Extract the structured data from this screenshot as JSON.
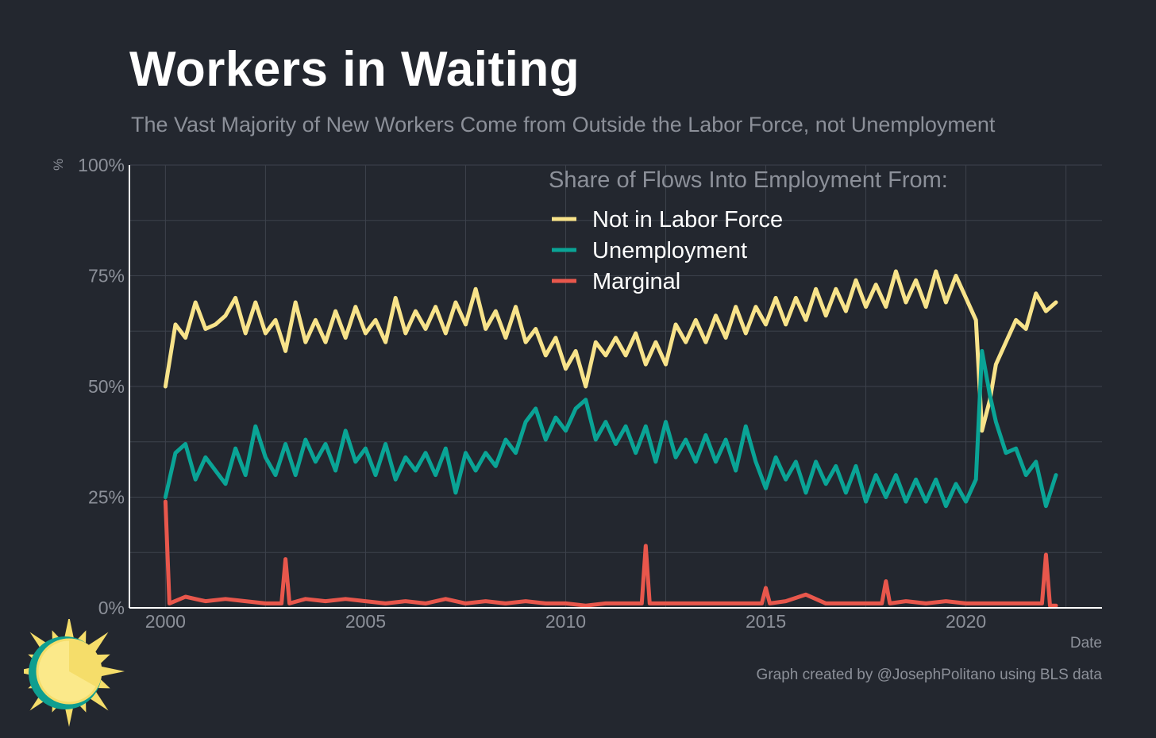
{
  "title": "Workers in Waiting",
  "subtitle": "The Vast Majority of New Workers Come from Outside the Labor Force, not Unemployment",
  "caption": "Graph created by @JosephPolitano using BLS data",
  "colors": {
    "background": "#23272f",
    "grid": "#3d424c",
    "axis": "#ffffff",
    "muted_text": "#8c9099",
    "not_in_labor_force": "#f8e38a",
    "unemployment": "#0aa496",
    "marginal": "#e8574c",
    "logo_sun": "#f5dd6a",
    "logo_ring": "#0f9e90"
  },
  "chart_data": {
    "type": "line",
    "title": "Workers in Waiting",
    "subtitle": "The Vast Majority of New Workers Come from Outside the Labor Force, not Unemployment",
    "xlabel": "Date",
    "ylabel": "%",
    "xlim": [
      1999.1,
      2023.4
    ],
    "ylim": [
      0,
      100
    ],
    "x_ticks": [
      2000,
      2005,
      2010,
      2015,
      2020
    ],
    "x_tick_labels": [
      "2000",
      "2005",
      "2010",
      "2015",
      "2020"
    ],
    "y_ticks": [
      0,
      25,
      50,
      75,
      100
    ],
    "y_tick_labels": [
      "0%",
      "25%",
      "50%",
      "75%",
      "100%"
    ],
    "grid": true,
    "legend_title": "Share of Flows Into Employment From:",
    "legend_position": "top-right",
    "series": [
      {
        "name": "Not in Labor Force",
        "color_key": "not_in_labor_force",
        "points": [
          [
            2000.0,
            50
          ],
          [
            2000.25,
            64
          ],
          [
            2000.5,
            61
          ],
          [
            2000.75,
            69
          ],
          [
            2001.0,
            63
          ],
          [
            2001.25,
            64
          ],
          [
            2001.5,
            66
          ],
          [
            2001.75,
            70
          ],
          [
            2002.0,
            62
          ],
          [
            2002.25,
            69
          ],
          [
            2002.5,
            62
          ],
          [
            2002.75,
            65
          ],
          [
            2003.0,
            58
          ],
          [
            2003.25,
            69
          ],
          [
            2003.5,
            60
          ],
          [
            2003.75,
            65
          ],
          [
            2004.0,
            60
          ],
          [
            2004.25,
            67
          ],
          [
            2004.5,
            61
          ],
          [
            2004.75,
            68
          ],
          [
            2005.0,
            62
          ],
          [
            2005.25,
            65
          ],
          [
            2005.5,
            60
          ],
          [
            2005.75,
            70
          ],
          [
            2006.0,
            62
          ],
          [
            2006.25,
            67
          ],
          [
            2006.5,
            63
          ],
          [
            2006.75,
            68
          ],
          [
            2007.0,
            62
          ],
          [
            2007.25,
            69
          ],
          [
            2007.5,
            64
          ],
          [
            2007.75,
            72
          ],
          [
            2008.0,
            63
          ],
          [
            2008.25,
            67
          ],
          [
            2008.5,
            61
          ],
          [
            2008.75,
            68
          ],
          [
            2009.0,
            60
          ],
          [
            2009.25,
            63
          ],
          [
            2009.5,
            57
          ],
          [
            2009.75,
            61
          ],
          [
            2010.0,
            54
          ],
          [
            2010.25,
            58
          ],
          [
            2010.5,
            50
          ],
          [
            2010.75,
            60
          ],
          [
            2011.0,
            57
          ],
          [
            2011.25,
            61
          ],
          [
            2011.5,
            57
          ],
          [
            2011.75,
            62
          ],
          [
            2012.0,
            55
          ],
          [
            2012.25,
            60
          ],
          [
            2012.5,
            55
          ],
          [
            2012.75,
            64
          ],
          [
            2013.0,
            60
          ],
          [
            2013.25,
            65
          ],
          [
            2013.5,
            60
          ],
          [
            2013.75,
            66
          ],
          [
            2014.0,
            61
          ],
          [
            2014.25,
            68
          ],
          [
            2014.5,
            62
          ],
          [
            2014.75,
            68
          ],
          [
            2015.0,
            64
          ],
          [
            2015.25,
            70
          ],
          [
            2015.5,
            64
          ],
          [
            2015.75,
            70
          ],
          [
            2016.0,
            65
          ],
          [
            2016.25,
            72
          ],
          [
            2016.5,
            66
          ],
          [
            2016.75,
            72
          ],
          [
            2017.0,
            67
          ],
          [
            2017.25,
            74
          ],
          [
            2017.5,
            68
          ],
          [
            2017.75,
            73
          ],
          [
            2018.0,
            68
          ],
          [
            2018.25,
            76
          ],
          [
            2018.5,
            69
          ],
          [
            2018.75,
            74
          ],
          [
            2019.0,
            68
          ],
          [
            2019.25,
            76
          ],
          [
            2019.5,
            69
          ],
          [
            2019.75,
            75
          ],
          [
            2020.0,
            70
          ],
          [
            2020.25,
            65
          ],
          [
            2020.4,
            40
          ],
          [
            2020.6,
            47
          ],
          [
            2020.75,
            55
          ],
          [
            2021.0,
            60
          ],
          [
            2021.25,
            65
          ],
          [
            2021.5,
            63
          ],
          [
            2021.75,
            71
          ],
          [
            2022.0,
            67
          ],
          [
            2022.25,
            69
          ]
        ]
      },
      {
        "name": "Unemployment",
        "color_key": "unemployment",
        "points": [
          [
            2000.0,
            25
          ],
          [
            2000.25,
            35
          ],
          [
            2000.5,
            37
          ],
          [
            2000.75,
            29
          ],
          [
            2001.0,
            34
          ],
          [
            2001.25,
            31
          ],
          [
            2001.5,
            28
          ],
          [
            2001.75,
            36
          ],
          [
            2002.0,
            30
          ],
          [
            2002.25,
            41
          ],
          [
            2002.5,
            34
          ],
          [
            2002.75,
            30
          ],
          [
            2003.0,
            37
          ],
          [
            2003.25,
            30
          ],
          [
            2003.5,
            38
          ],
          [
            2003.75,
            33
          ],
          [
            2004.0,
            37
          ],
          [
            2004.25,
            31
          ],
          [
            2004.5,
            40
          ],
          [
            2004.75,
            33
          ],
          [
            2005.0,
            36
          ],
          [
            2005.25,
            30
          ],
          [
            2005.5,
            37
          ],
          [
            2005.75,
            29
          ],
          [
            2006.0,
            34
          ],
          [
            2006.25,
            31
          ],
          [
            2006.5,
            35
          ],
          [
            2006.75,
            30
          ],
          [
            2007.0,
            36
          ],
          [
            2007.25,
            26
          ],
          [
            2007.5,
            35
          ],
          [
            2007.75,
            31
          ],
          [
            2008.0,
            35
          ],
          [
            2008.25,
            32
          ],
          [
            2008.5,
            38
          ],
          [
            2008.75,
            35
          ],
          [
            2009.0,
            42
          ],
          [
            2009.25,
            45
          ],
          [
            2009.5,
            38
          ],
          [
            2009.75,
            43
          ],
          [
            2010.0,
            40
          ],
          [
            2010.25,
            45
          ],
          [
            2010.5,
            47
          ],
          [
            2010.75,
            38
          ],
          [
            2011.0,
            42
          ],
          [
            2011.25,
            37
          ],
          [
            2011.5,
            41
          ],
          [
            2011.75,
            35
          ],
          [
            2012.0,
            41
          ],
          [
            2012.25,
            33
          ],
          [
            2012.5,
            42
          ],
          [
            2012.75,
            34
          ],
          [
            2013.0,
            38
          ],
          [
            2013.25,
            33
          ],
          [
            2013.5,
            39
          ],
          [
            2013.75,
            33
          ],
          [
            2014.0,
            38
          ],
          [
            2014.25,
            31
          ],
          [
            2014.5,
            41
          ],
          [
            2014.75,
            33
          ],
          [
            2015.0,
            27
          ],
          [
            2015.25,
            34
          ],
          [
            2015.5,
            29
          ],
          [
            2015.75,
            33
          ],
          [
            2016.0,
            26
          ],
          [
            2016.25,
            33
          ],
          [
            2016.5,
            28
          ],
          [
            2016.75,
            32
          ],
          [
            2017.0,
            26
          ],
          [
            2017.25,
            32
          ],
          [
            2017.5,
            24
          ],
          [
            2017.75,
            30
          ],
          [
            2018.0,
            25
          ],
          [
            2018.25,
            30
          ],
          [
            2018.5,
            24
          ],
          [
            2018.75,
            29
          ],
          [
            2019.0,
            24
          ],
          [
            2019.25,
            29
          ],
          [
            2019.5,
            23
          ],
          [
            2019.75,
            28
          ],
          [
            2020.0,
            24
          ],
          [
            2020.25,
            29
          ],
          [
            2020.4,
            58
          ],
          [
            2020.6,
            48
          ],
          [
            2020.75,
            42
          ],
          [
            2021.0,
            35
          ],
          [
            2021.25,
            36
          ],
          [
            2021.5,
            30
          ],
          [
            2021.75,
            33
          ],
          [
            2022.0,
            23
          ],
          [
            2022.25,
            30
          ]
        ]
      },
      {
        "name": "Marginal",
        "color_key": "marginal",
        "points": [
          [
            2000.0,
            24
          ],
          [
            2000.1,
            1
          ],
          [
            2000.5,
            2.5
          ],
          [
            2001.0,
            1.5
          ],
          [
            2001.5,
            2
          ],
          [
            2002.0,
            1.5
          ],
          [
            2002.5,
            1
          ],
          [
            2002.9,
            1
          ],
          [
            2003.0,
            11
          ],
          [
            2003.1,
            1
          ],
          [
            2003.5,
            2
          ],
          [
            2004.0,
            1.5
          ],
          [
            2004.5,
            2
          ],
          [
            2005.0,
            1.5
          ],
          [
            2005.5,
            1
          ],
          [
            2006.0,
            1.5
          ],
          [
            2006.5,
            1
          ],
          [
            2007.0,
            2
          ],
          [
            2007.5,
            1
          ],
          [
            2008.0,
            1.5
          ],
          [
            2008.5,
            1
          ],
          [
            2009.0,
            1.5
          ],
          [
            2009.5,
            1
          ],
          [
            2010.0,
            1
          ],
          [
            2010.5,
            0.5
          ],
          [
            2011.0,
            1
          ],
          [
            2011.5,
            1
          ],
          [
            2011.9,
            1
          ],
          [
            2012.0,
            14
          ],
          [
            2012.1,
            1
          ],
          [
            2012.5,
            1
          ],
          [
            2013.0,
            1
          ],
          [
            2013.5,
            1
          ],
          [
            2014.0,
            1
          ],
          [
            2014.5,
            1
          ],
          [
            2014.9,
            1
          ],
          [
            2015.0,
            4.5
          ],
          [
            2015.1,
            1
          ],
          [
            2015.5,
            1.5
          ],
          [
            2016.0,
            3
          ],
          [
            2016.5,
            1
          ],
          [
            2017.0,
            1
          ],
          [
            2017.5,
            1
          ],
          [
            2017.9,
            1
          ],
          [
            2018.0,
            6
          ],
          [
            2018.1,
            1
          ],
          [
            2018.5,
            1.5
          ],
          [
            2019.0,
            1
          ],
          [
            2019.5,
            1.5
          ],
          [
            2020.0,
            1
          ],
          [
            2020.5,
            1
          ],
          [
            2021.0,
            1
          ],
          [
            2021.5,
            1
          ],
          [
            2021.9,
            1
          ],
          [
            2022.0,
            12
          ],
          [
            2022.1,
            0.5
          ],
          [
            2022.25,
            0.5
          ]
        ]
      }
    ]
  },
  "logo": {
    "name": "sun logo"
  }
}
